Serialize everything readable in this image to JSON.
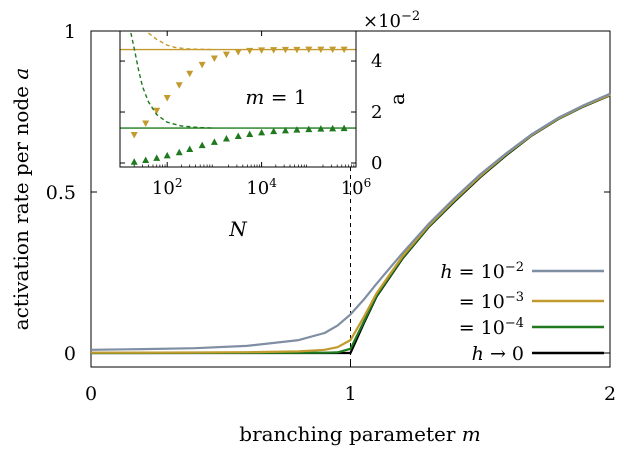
{
  "chart_data": [
    {
      "type": "line",
      "xlabel": "branching parameter",
      "xlabel_symbol": "m",
      "ylabel": "activation rate per node",
      "ylabel_symbol": "a",
      "xlim": [
        0,
        2
      ],
      "ylim": [
        0,
        1
      ],
      "x_ticks": [
        "0",
        "1",
        "2"
      ],
      "y_ticks": [
        "0",
        "0.5",
        "1"
      ],
      "annotations": [
        {
          "type": "vline",
          "x": 1,
          "style": "dashed"
        }
      ],
      "legend_position": "bottom-right",
      "series": [
        {
          "name": "h = 10^-2",
          "legend_prefix": "h = 10",
          "legend_exp": "−2",
          "color": "#7f8ea3",
          "x": [
            0,
            0.2,
            0.4,
            0.6,
            0.8,
            0.9,
            0.95,
            1.0,
            1.05,
            1.1,
            1.2,
            1.3,
            1.4,
            1.5,
            1.6,
            1.7,
            1.8,
            1.9,
            2.0
          ],
          "y": [
            0.01,
            0.012,
            0.015,
            0.022,
            0.04,
            0.062,
            0.085,
            0.12,
            0.165,
            0.215,
            0.31,
            0.4,
            0.48,
            0.555,
            0.62,
            0.68,
            0.73,
            0.77,
            0.805
          ]
        },
        {
          "name": "h = 10^-3",
          "legend_prefix": "= 10",
          "legend_exp": "−3",
          "color": "#c39a2e",
          "x": [
            0,
            0.2,
            0.4,
            0.6,
            0.8,
            0.9,
            0.95,
            1.0,
            1.05,
            1.1,
            1.2,
            1.3,
            1.4,
            1.5,
            1.6,
            1.7,
            1.8,
            1.9,
            2.0
          ],
          "y": [
            0.001,
            0.0013,
            0.0017,
            0.0025,
            0.005,
            0.01,
            0.018,
            0.04,
            0.11,
            0.185,
            0.3,
            0.395,
            0.475,
            0.55,
            0.618,
            0.678,
            0.728,
            0.768,
            0.802
          ]
        },
        {
          "name": "h = 10^-4",
          "legend_prefix": "= 10",
          "legend_exp": "−4",
          "color": "#1f7a1f",
          "x": [
            0,
            0.2,
            0.4,
            0.6,
            0.8,
            0.9,
            0.95,
            1.0,
            1.05,
            1.1,
            1.2,
            1.3,
            1.4,
            1.5,
            1.6,
            1.7,
            1.8,
            1.9,
            2.0
          ],
          "y": [
            0.0001,
            0.0001,
            0.0002,
            0.0003,
            0.0005,
            0.001,
            0.002,
            0.013,
            0.095,
            0.178,
            0.295,
            0.392,
            0.472,
            0.548,
            0.616,
            0.677,
            0.727,
            0.767,
            0.801
          ]
        },
        {
          "name": "h → 0",
          "legend_prefix": "h → 0",
          "legend_exp": "",
          "color": "#000000",
          "x": [
            0,
            0.5,
            1.0,
            1.05,
            1.1,
            1.2,
            1.3,
            1.4,
            1.5,
            1.6,
            1.7,
            1.8,
            1.9,
            2.0
          ],
          "y": [
            0,
            0,
            0,
            0.09,
            0.175,
            0.293,
            0.39,
            0.47,
            0.546,
            0.614,
            0.676,
            0.726,
            0.766,
            0.8
          ]
        }
      ]
    },
    {
      "type": "scatter",
      "xscale": "log",
      "xlabel": "N",
      "ylabel": "a",
      "y_multiplier": "×10",
      "y_multiplier_exp": "−2",
      "annotation": "m = 1",
      "xlim": [
        10,
        1000000
      ],
      "ylim": [
        0,
        5.1
      ],
      "x_ticks": [
        {
          "base": "10",
          "exp": "2",
          "value": 100
        },
        {
          "base": "10",
          "exp": "4",
          "value": 10000
        },
        {
          "base": "10",
          "exp": "6",
          "value": 1000000
        }
      ],
      "y_ticks": [
        0,
        2,
        4
      ],
      "series": [
        {
          "group": "gold",
          "color": "#c39a2e",
          "marker": "triangle-down",
          "hline": 4.45,
          "curve_x": [
            40,
            60,
            100,
            150,
            250,
            500,
            1000
          ],
          "curve_y": [
            5.1,
            4.85,
            4.62,
            4.53,
            4.48,
            4.46,
            4.45
          ],
          "x": [
            20,
            35,
            60,
            100,
            180,
            300,
            550,
            1000,
            1800,
            3200,
            5600,
            10000,
            18000,
            32000,
            56000,
            100000,
            180000,
            320000,
            560000
          ],
          "y": [
            1.1,
            1.55,
            2.05,
            2.55,
            3.05,
            3.5,
            3.85,
            4.1,
            4.25,
            4.35,
            4.4,
            4.42,
            4.43,
            4.44,
            4.44,
            4.45,
            4.45,
            4.45,
            4.45
          ]
        },
        {
          "group": "green",
          "color": "#1f7a1f",
          "marker": "triangle-up",
          "hline": 1.37,
          "curve_x": [
            17,
            20,
            25,
            30,
            40,
            60,
            100,
            200,
            500,
            1000
          ],
          "curve_y": [
            5.1,
            4.5,
            3.6,
            3.0,
            2.4,
            1.9,
            1.6,
            1.45,
            1.39,
            1.37
          ],
          "x": [
            20,
            35,
            60,
            100,
            180,
            300,
            550,
            1000,
            1800,
            3200,
            5600,
            10000,
            18000,
            32000,
            56000,
            100000,
            180000,
            320000,
            560000
          ],
          "y": [
            0.05,
            0.12,
            0.2,
            0.3,
            0.42,
            0.55,
            0.7,
            0.83,
            0.96,
            1.06,
            1.14,
            1.2,
            1.25,
            1.28,
            1.31,
            1.33,
            1.35,
            1.36,
            1.37
          ]
        }
      ]
    }
  ]
}
